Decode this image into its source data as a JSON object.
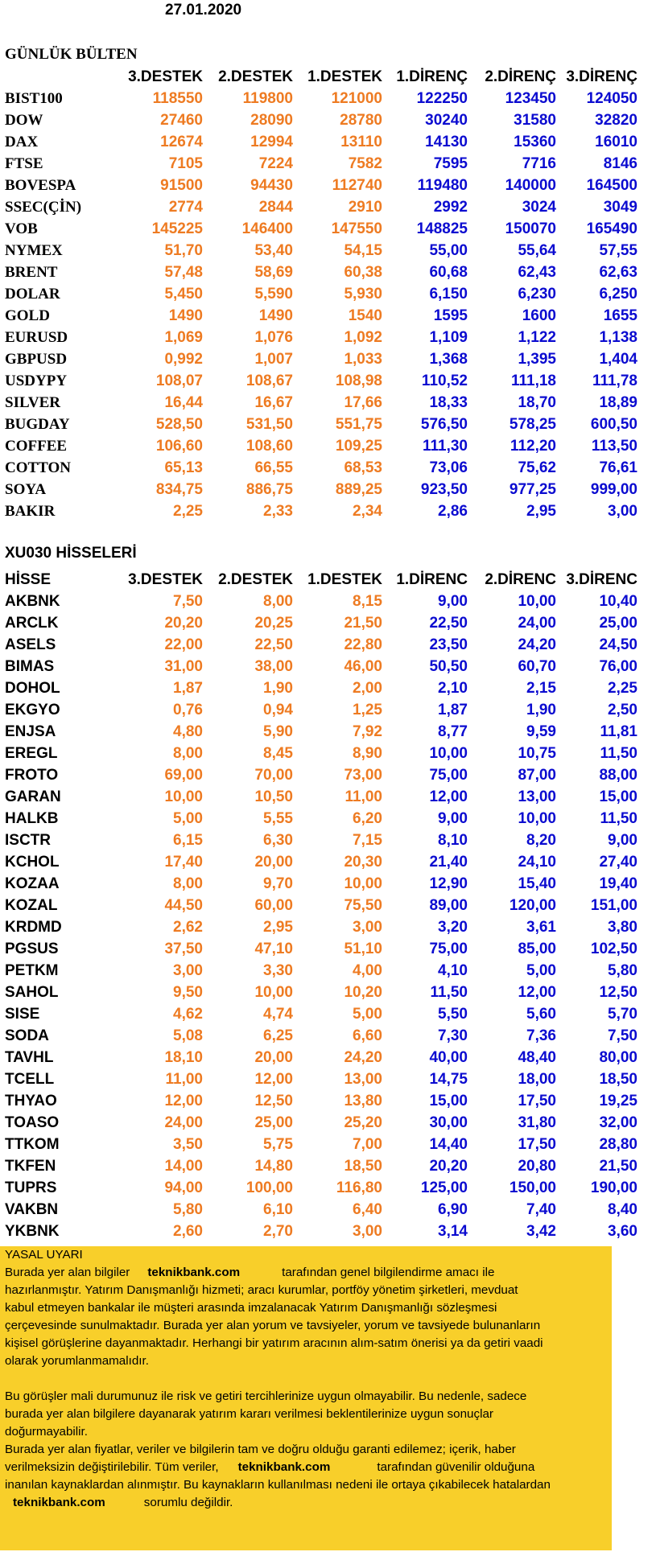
{
  "date": "27.01.2020",
  "title": "GÜNLÜK BÜLTEN",
  "headers": [
    "3.DESTEK",
    "2.DESTEK",
    "1.DESTEK",
    "1.DİRENÇ",
    "2.DİRENÇ",
    "3.DİRENÇ"
  ],
  "markets": [
    {
      "name": "BIST100",
      "values": [
        "118550",
        "119800",
        "121000",
        "122250",
        "123450",
        "124050"
      ]
    },
    {
      "name": "DOW",
      "values": [
        "27460",
        "28090",
        "28780",
        "30240",
        "31580",
        "32820"
      ]
    },
    {
      "name": "DAX",
      "values": [
        "12674",
        "12994",
        "13110",
        "14130",
        "15360",
        "16010"
      ]
    },
    {
      "name": "FTSE",
      "values": [
        "7105",
        "7224",
        "7582",
        "7595",
        "7716",
        "8146"
      ]
    },
    {
      "name": "BOVESPA",
      "values": [
        "91500",
        "94430",
        "112740",
        "119480",
        "140000",
        "164500"
      ]
    },
    {
      "name": "SSEC(ÇİN)",
      "values": [
        "2774",
        "2844",
        "2910",
        "2992",
        "3024",
        "3049"
      ]
    },
    {
      "name": "VOB",
      "values": [
        "145225",
        "146400",
        "147550",
        "148825",
        "150070",
        "165490"
      ]
    },
    {
      "name": "NYMEX",
      "values": [
        "51,70",
        "53,40",
        "54,15",
        "55,00",
        "55,64",
        "57,55"
      ]
    },
    {
      "name": "BRENT",
      "values": [
        "57,48",
        "58,69",
        "60,38",
        "60,68",
        "62,43",
        "62,63"
      ]
    },
    {
      "name": "DOLAR",
      "values": [
        "5,450",
        "5,590",
        "5,930",
        "6,150",
        "6,230",
        "6,250"
      ]
    },
    {
      "name": "GOLD",
      "values": [
        "1490",
        "1490",
        "1540",
        "1595",
        "1600",
        "1655"
      ]
    },
    {
      "name": "EURUSD",
      "values": [
        "1,069",
        "1,076",
        "1,092",
        "1,109",
        "1,122",
        "1,138"
      ]
    },
    {
      "name": "GBPUSD",
      "values": [
        "0,992",
        "1,007",
        "1,033",
        "1,368",
        "1,395",
        "1,404"
      ]
    },
    {
      "name": "USDYPY",
      "values": [
        "108,07",
        "108,67",
        "108,98",
        "110,52",
        "111,18",
        "111,78"
      ]
    },
    {
      "name": "SILVER",
      "values": [
        "16,44",
        "16,67",
        "17,66",
        "18,33",
        "18,70",
        "18,89"
      ]
    },
    {
      "name": "BUGDAY",
      "values": [
        "528,50",
        "531,50",
        "551,75",
        "576,50",
        "578,25",
        "600,50"
      ]
    },
    {
      "name": "COFFEE",
      "values": [
        "106,60",
        "108,60",
        "109,25",
        "111,30",
        "112,20",
        "113,50"
      ]
    },
    {
      "name": "COTTON",
      "values": [
        "65,13",
        "66,55",
        "68,53",
        "73,06",
        "75,62",
        "76,61"
      ]
    },
    {
      "name": "SOYA",
      "values": [
        "834,75",
        "886,75",
        "889,25",
        "923,50",
        "977,25",
        "999,00"
      ]
    },
    {
      "name": "BAKIR",
      "values": [
        "2,25",
        "2,33",
        "2,34",
        "2,86",
        "2,95",
        "3,00"
      ]
    }
  ],
  "section2_title": "XU030 HİSSELERİ",
  "stock_headers": [
    "HİSSE",
    "3.DESTEK",
    "2.DESTEK",
    "1.DESTEK",
    "1.DİRENC",
    "2.DİRENC",
    "3.DİRENC"
  ],
  "stocks": [
    {
      "name": "AKBNK",
      "values": [
        "7,50",
        "8,00",
        "8,15",
        "9,00",
        "10,00",
        "10,40"
      ]
    },
    {
      "name": "ARCLK",
      "values": [
        "20,20",
        "20,25",
        "21,50",
        "22,50",
        "24,00",
        "25,00"
      ]
    },
    {
      "name": "ASELS",
      "values": [
        "22,00",
        "22,50",
        "22,80",
        "23,50",
        "24,20",
        "24,50"
      ]
    },
    {
      "name": "BIMAS",
      "values": [
        "31,00",
        "38,00",
        "46,00",
        "50,50",
        "60,70",
        "76,00"
      ]
    },
    {
      "name": "DOHOL",
      "values": [
        "1,87",
        "1,90",
        "2,00",
        "2,10",
        "2,15",
        "2,25"
      ]
    },
    {
      "name": "EKGYO",
      "values": [
        "0,76",
        "0,94",
        "1,25",
        "1,87",
        "1,90",
        "2,50"
      ]
    },
    {
      "name": "ENJSA",
      "values": [
        "4,80",
        "5,90",
        "7,92",
        "8,77",
        "9,59",
        "11,81"
      ]
    },
    {
      "name": "EREGL",
      "values": [
        "8,00",
        "8,45",
        "8,90",
        "10,00",
        "10,75",
        "11,50"
      ]
    },
    {
      "name": "FROTO",
      "values": [
        "69,00",
        "70,00",
        "73,00",
        "75,00",
        "87,00",
        "88,00"
      ]
    },
    {
      "name": "GARAN",
      "values": [
        "10,00",
        "10,50",
        "11,00",
        "12,00",
        "13,00",
        "15,00"
      ]
    },
    {
      "name": "HALKB",
      "values": [
        "5,00",
        "5,55",
        "6,20",
        "9,00",
        "10,00",
        "11,50"
      ]
    },
    {
      "name": "ISCTR",
      "values": [
        "6,15",
        "6,30",
        "7,15",
        "8,10",
        "8,20",
        "9,00"
      ]
    },
    {
      "name": "KCHOL",
      "values": [
        "17,40",
        "20,00",
        "20,30",
        "21,40",
        "24,10",
        "27,40"
      ]
    },
    {
      "name": "KOZAA",
      "values": [
        "8,00",
        "9,70",
        "10,00",
        "12,90",
        "15,40",
        "19,40"
      ]
    },
    {
      "name": "KOZAL",
      "values": [
        "44,50",
        "60,00",
        "75,50",
        "89,00",
        "120,00",
        "151,00"
      ]
    },
    {
      "name": "KRDMD",
      "values": [
        "2,62",
        "2,95",
        "3,00",
        "3,20",
        "3,61",
        "3,80"
      ]
    },
    {
      "name": "PGSUS",
      "values": [
        "37,50",
        "47,10",
        "51,10",
        "75,00",
        "85,00",
        "102,50"
      ]
    },
    {
      "name": "PETKM",
      "values": [
        "3,00",
        "3,30",
        "4,00",
        "4,10",
        "5,00",
        "5,80"
      ]
    },
    {
      "name": "SAHOL",
      "values": [
        "9,50",
        "10,00",
        "10,20",
        "11,50",
        "12,00",
        "12,50"
      ]
    },
    {
      "name": "SISE",
      "values": [
        "4,62",
        "4,74",
        "5,00",
        "5,50",
        "5,60",
        "5,70"
      ]
    },
    {
      "name": "SODA",
      "values": [
        "5,08",
        "6,25",
        "6,60",
        "7,30",
        "7,36",
        "7,50"
      ]
    },
    {
      "name": "TAVHL",
      "values": [
        "18,10",
        "20,00",
        "24,20",
        "40,00",
        "48,40",
        "80,00"
      ]
    },
    {
      "name": "TCELL",
      "values": [
        "11,00",
        "12,00",
        "13,00",
        "14,75",
        "18,00",
        "18,50"
      ]
    },
    {
      "name": "THYAO",
      "values": [
        "12,00",
        "12,50",
        "13,80",
        "15,00",
        "17,50",
        "19,25"
      ]
    },
    {
      "name": "TOASO",
      "values": [
        "24,00",
        "25,00",
        "25,20",
        "30,00",
        "31,80",
        "32,00"
      ]
    },
    {
      "name": "TTKOM",
      "values": [
        "3,50",
        "5,75",
        "7,00",
        "14,40",
        "17,50",
        "28,80"
      ]
    },
    {
      "name": "TKFEN",
      "values": [
        "14,00",
        "14,80",
        "18,50",
        "20,20",
        "20,80",
        "21,50"
      ]
    },
    {
      "name": "TUPRS",
      "values": [
        "94,00",
        "100,00",
        "116,80",
        "125,00",
        "150,00",
        "190,00"
      ]
    },
    {
      "name": "VAKBN",
      "values": [
        "5,80",
        "6,10",
        "6,40",
        "6,90",
        "7,40",
        "8,40"
      ]
    },
    {
      "name": "YKBNK",
      "values": [
        "2,60",
        "2,70",
        "3,00",
        "3,14",
        "3,42",
        "3,60"
      ]
    }
  ],
  "colors": {
    "support": "#ee7b22",
    "resistance": "#0b0bd0",
    "disclaimer_bg": "#f8cf2a"
  },
  "legal": {
    "heading": "YASAL UYARI",
    "l1_pre": "Burada yer alan bilgiler",
    "brand": "teknikbank.com",
    "l1_post": "tarafından genel bilgilendirme amacı ile",
    "l2": "hazırlanmıştır. Yatırım Danışmanlığı hizmeti; aracı kurumlar, portföy yönetim şirketleri, mevduat",
    "l3": "kabul etmeyen bankalar ile müşteri arasında imzalanacak Yatırım Danışmanlığı sözleşmesi",
    "l4": "çerçevesinde sunulmaktadır. Burada yer alan yorum ve tavsiyeler, yorum ve tavsiyede bulunanların",
    "l5": "kişisel görüşlerine dayanmaktadır. Herhangi bir yatırım aracının alım-satım önerisi ya da getiri vaadi",
    "l6": "olarak yorumlanmamalıdır.",
    "l7": "Bu görüşler mali durumunuz ile risk ve getiri tercihlerinize uygun olmayabilir. Bu nedenle, sadece",
    "l8": "burada yer alan bilgilere dayanarak yatırım kararı verilmesi beklentilerinize uygun sonuçlar",
    "l9": "doğurmayabilir.",
    "l10": "Burada yer alan fiyatlar, veriler ve bilgilerin tam ve doğru olduğu garanti edilemez; içerik, haber",
    "l11_pre": "verilmeksizin değiştirilebilir. Tüm veriler,",
    "l11_post": "tarafından güvenilir olduğuna",
    "l12": "inanılan kaynaklardan alınmıştır. Bu kaynakların kullanılması nedeni ile ortaya çıkabilecek hatalardan",
    "l13_post": "sorumlu değildir."
  }
}
